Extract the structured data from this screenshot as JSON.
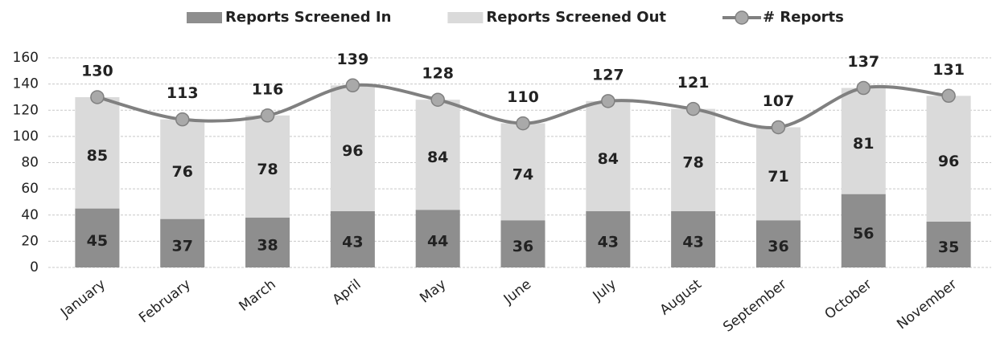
{
  "chart_data": {
    "type": "bar",
    "stacked": true,
    "grid": true,
    "categories": [
      "January",
      "February",
      "March",
      "April",
      "May",
      "June",
      "July",
      "August",
      "September",
      "October",
      "November"
    ],
    "series": [
      {
        "name": "Reports Screened In",
        "color": "#8e8e8e",
        "values": [
          45,
          37,
          38,
          43,
          44,
          36,
          43,
          43,
          36,
          56,
          35
        ]
      },
      {
        "name": "Reports Screened Out",
        "color": "#dadada",
        "values": [
          85,
          76,
          78,
          96,
          84,
          74,
          84,
          78,
          71,
          81,
          96
        ]
      },
      {
        "name": "# Reports",
        "type": "line",
        "color": "#808080",
        "marker_color": "#a9a9a9",
        "values": [
          130,
          113,
          116,
          139,
          128,
          110,
          127,
          121,
          107,
          137,
          131
        ]
      }
    ],
    "ylim": [
      0,
      160
    ],
    "yticks": [
      0,
      20,
      40,
      60,
      80,
      100,
      120,
      140,
      160
    ]
  }
}
